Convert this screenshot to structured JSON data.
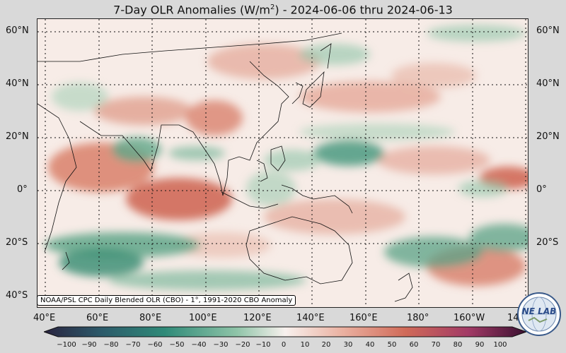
{
  "title_main": "7-Day OLR Anomalies (W/m",
  "title_unit_sup": "2",
  "title_tail": ") - 2024-06-06 thru 2024-06-13",
  "lat_labels": [
    "60°N",
    "40°N",
    "20°N",
    "0°",
    "20°S",
    "40°S"
  ],
  "lon_labels": [
    "40°E",
    "60°E",
    "80°E",
    "100°E",
    "120°E",
    "140°E",
    "160°E",
    "180°",
    "160°W",
    "14"
  ],
  "credit": "NOAA/PSL CPC Daily Blended OLR (CBO) - 1°, 1991-2020 CBO Anomaly",
  "logo_text": "NE LAB",
  "colorbar_ticks": [
    "−100",
    "−90",
    "−80",
    "−70",
    "−60",
    "−50",
    "−40",
    "−30",
    "−20",
    "−10",
    "0",
    "10",
    "20",
    "30",
    "40",
    "50",
    "60",
    "70",
    "80",
    "90",
    "100"
  ],
  "colors": {
    "negative_strong": "#3d2a5a",
    "negative_mid": "#2f8a78",
    "neutral": "#f8f1ee",
    "positive_mid": "#d4735e",
    "positive_strong": "#6a1a4a"
  },
  "map_extent": {
    "lon_min": 37,
    "lon_max": 220,
    "lat_min": -43,
    "lat_max": 65
  }
}
